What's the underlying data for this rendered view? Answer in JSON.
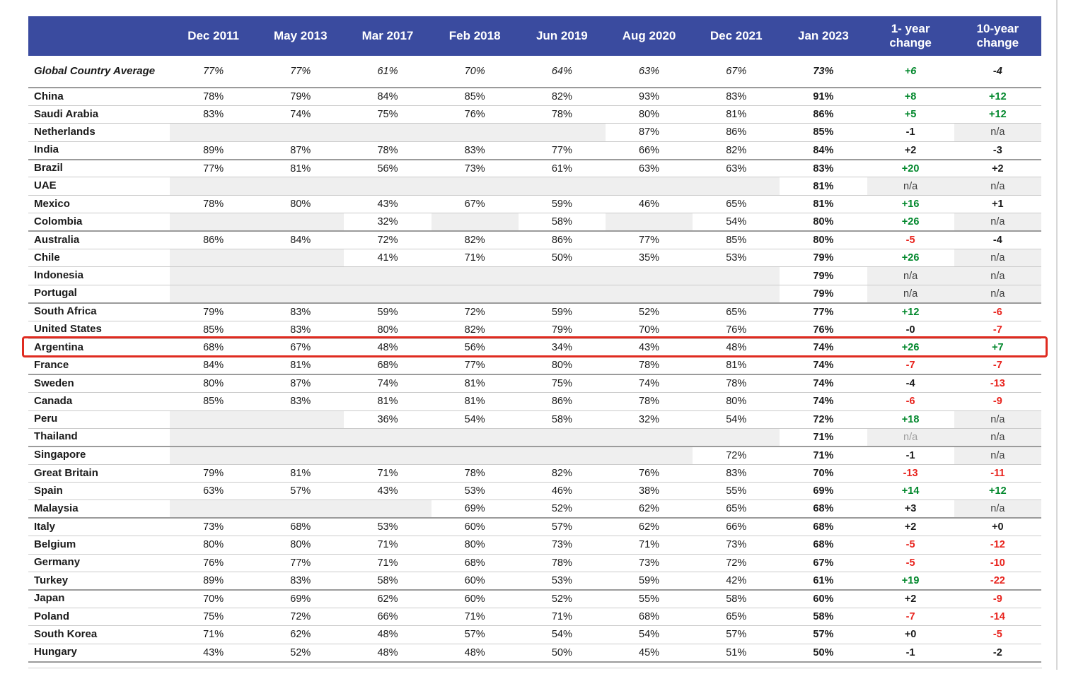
{
  "colors": {
    "header_bg": "#3A4B9F",
    "header_text": "#FFFFFF",
    "positive_green": "#00872B",
    "negative_red": "#E8231D",
    "neutral_black": "#1A1A1A",
    "missing_cell_bg": "#EFEFEF",
    "highlight_border": "#DF2B20"
  },
  "chart_data": {
    "type": "table",
    "columns": [
      "",
      "Dec 2011",
      "May 2013",
      "Mar 2017",
      "Feb 2018",
      "Jun 2019",
      "Aug 2020",
      "Dec 2021",
      "Jan 2023",
      "1- year change",
      "10-year change"
    ],
    "summary_row": {
      "n": "Global Country Average",
      "v": [
        "77%",
        "77%",
        "61%",
        "70%",
        "64%",
        "63%",
        "67%"
      ],
      "j": "73%",
      "c1": {
        "t": "+6",
        "c": "green"
      },
      "c10": {
        "t": "-4",
        "c": "black"
      }
    },
    "rows": [
      {
        "n": "China",
        "v": [
          "78%",
          "79%",
          "84%",
          "85%",
          "82%",
          "93%",
          "83%"
        ],
        "j": "91%",
        "c1": {
          "t": "+8",
          "c": "green"
        },
        "c10": {
          "t": "+12",
          "c": "green"
        }
      },
      {
        "n": "Saudi Arabia",
        "v": [
          "83%",
          "74%",
          "75%",
          "76%",
          "78%",
          "80%",
          "81%"
        ],
        "j": "86%",
        "c1": {
          "t": "+5",
          "c": "green"
        },
        "c10": {
          "t": "+12",
          "c": "green"
        }
      },
      {
        "n": "Netherlands",
        "v": [
          null,
          null,
          null,
          null,
          null,
          "87%",
          "86%"
        ],
        "j": "85%",
        "c1": {
          "t": "-1",
          "c": "black"
        },
        "c10": {
          "t": "n/a",
          "na": true
        }
      },
      {
        "n": "India",
        "v": [
          "89%",
          "87%",
          "78%",
          "83%",
          "77%",
          "66%",
          "82%"
        ],
        "j": "84%",
        "c1": {
          "t": "+2",
          "c": "black"
        },
        "c10": {
          "t": "-3",
          "c": "black"
        },
        "g": true
      },
      {
        "n": "Brazil",
        "v": [
          "77%",
          "81%",
          "56%",
          "73%",
          "61%",
          "63%",
          "63%"
        ],
        "j": "83%",
        "c1": {
          "t": "+20",
          "c": "green"
        },
        "c10": {
          "t": "+2",
          "c": "black"
        }
      },
      {
        "n": "UAE",
        "v": [
          null,
          null,
          null,
          null,
          null,
          null,
          null
        ],
        "j": "81%",
        "c1": {
          "t": "n/a",
          "na": true
        },
        "c10": {
          "t": "n/a",
          "na": true
        }
      },
      {
        "n": "Mexico",
        "v": [
          "78%",
          "80%",
          "43%",
          "67%",
          "59%",
          "46%",
          "65%"
        ],
        "j": "81%",
        "c1": {
          "t": "+16",
          "c": "green"
        },
        "c10": {
          "t": "+1",
          "c": "black"
        }
      },
      {
        "n": "Colombia",
        "v": [
          null,
          null,
          "32%",
          null,
          "58%",
          null,
          "54%"
        ],
        "j": "80%",
        "c1": {
          "t": "+26",
          "c": "green"
        },
        "c10": {
          "t": "n/a",
          "na": true
        },
        "g": true
      },
      {
        "n": "Australia",
        "v": [
          "86%",
          "84%",
          "72%",
          "82%",
          "86%",
          "77%",
          "85%"
        ],
        "j": "80%",
        "c1": {
          "t": "-5",
          "c": "red"
        },
        "c10": {
          "t": "-4",
          "c": "black"
        }
      },
      {
        "n": "Chile",
        "v": [
          null,
          null,
          "41%",
          "71%",
          "50%",
          "35%",
          "53%"
        ],
        "j": "79%",
        "c1": {
          "t": "+26",
          "c": "green"
        },
        "c10": {
          "t": "n/a",
          "na": true
        }
      },
      {
        "n": "Indonesia",
        "v": [
          null,
          null,
          null,
          null,
          null,
          null,
          null
        ],
        "j": "79%",
        "c1": {
          "t": "n/a",
          "na": true
        },
        "c10": {
          "t": "n/a",
          "na": true
        }
      },
      {
        "n": "Portugal",
        "v": [
          null,
          null,
          null,
          null,
          null,
          null,
          null
        ],
        "j": "79%",
        "c1": {
          "t": "n/a",
          "na": true
        },
        "c10": {
          "t": "n/a",
          "na": true
        },
        "g": true
      },
      {
        "n": "South Africa",
        "v": [
          "79%",
          "83%",
          "59%",
          "72%",
          "59%",
          "52%",
          "65%"
        ],
        "j": "77%",
        "c1": {
          "t": "+12",
          "c": "green"
        },
        "c10": {
          "t": "-6",
          "c": "red"
        }
      },
      {
        "n": "United States",
        "v": [
          "85%",
          "83%",
          "80%",
          "82%",
          "79%",
          "70%",
          "76%"
        ],
        "j": "76%",
        "c1": {
          "t": "-0",
          "c": "black"
        },
        "c10": {
          "t": "-7",
          "c": "red"
        }
      },
      {
        "n": "Argentina",
        "v": [
          "68%",
          "67%",
          "48%",
          "56%",
          "34%",
          "43%",
          "48%"
        ],
        "j": "74%",
        "c1": {
          "t": "+26",
          "c": "green"
        },
        "c10": {
          "t": "+7",
          "c": "green"
        },
        "hl": true
      },
      {
        "n": "France",
        "v": [
          "84%",
          "81%",
          "68%",
          "77%",
          "80%",
          "78%",
          "81%"
        ],
        "j": "74%",
        "c1": {
          "t": "-7",
          "c": "red"
        },
        "c10": {
          "t": "-7",
          "c": "red"
        },
        "g": true
      },
      {
        "n": "Sweden",
        "v": [
          "80%",
          "87%",
          "74%",
          "81%",
          "75%",
          "74%",
          "78%"
        ],
        "j": "74%",
        "c1": {
          "t": "-4",
          "c": "black"
        },
        "c10": {
          "t": "-13",
          "c": "red"
        }
      },
      {
        "n": "Canada",
        "v": [
          "85%",
          "83%",
          "81%",
          "81%",
          "86%",
          "78%",
          "80%"
        ],
        "j": "74%",
        "c1": {
          "t": "-6",
          "c": "red"
        },
        "c10": {
          "t": "-9",
          "c": "red"
        }
      },
      {
        "n": "Peru",
        "v": [
          null,
          null,
          "36%",
          "54%",
          "58%",
          "32%",
          "54%"
        ],
        "j": "72%",
        "c1": {
          "t": "+18",
          "c": "green"
        },
        "c10": {
          "t": "n/a",
          "na": true
        }
      },
      {
        "n": "Thailand",
        "v": [
          null,
          null,
          null,
          null,
          null,
          null,
          null
        ],
        "j": "71%",
        "c1": {
          "t": "n/a",
          "na": true,
          "c": "gray"
        },
        "c10": {
          "t": "n/a",
          "na": true
        },
        "g": true
      },
      {
        "n": "Singapore",
        "v": [
          null,
          null,
          null,
          null,
          null,
          null,
          "72%"
        ],
        "j": "71%",
        "c1": {
          "t": "-1",
          "c": "black"
        },
        "c10": {
          "t": "n/a",
          "na": true
        }
      },
      {
        "n": "Great Britain",
        "v": [
          "79%",
          "81%",
          "71%",
          "78%",
          "82%",
          "76%",
          "83%"
        ],
        "j": "70%",
        "c1": {
          "t": "-13",
          "c": "red"
        },
        "c10": {
          "t": "-11",
          "c": "red"
        }
      },
      {
        "n": "Spain",
        "v": [
          "63%",
          "57%",
          "43%",
          "53%",
          "46%",
          "38%",
          "55%"
        ],
        "j": "69%",
        "c1": {
          "t": "+14",
          "c": "green"
        },
        "c10": {
          "t": "+12",
          "c": "green"
        }
      },
      {
        "n": "Malaysia",
        "v": [
          null,
          null,
          null,
          "69%",
          "52%",
          "62%",
          "65%"
        ],
        "j": "68%",
        "c1": {
          "t": "+3",
          "c": "black"
        },
        "c10": {
          "t": "n/a",
          "na": true
        },
        "g": true
      },
      {
        "n": "Italy",
        "v": [
          "73%",
          "68%",
          "53%",
          "60%",
          "57%",
          "62%",
          "66%"
        ],
        "j": "68%",
        "c1": {
          "t": "+2",
          "c": "black"
        },
        "c10": {
          "t": "+0",
          "c": "black"
        }
      },
      {
        "n": "Belgium",
        "v": [
          "80%",
          "80%",
          "71%",
          "80%",
          "73%",
          "71%",
          "73%"
        ],
        "j": "68%",
        "c1": {
          "t": "-5",
          "c": "red"
        },
        "c10": {
          "t": "-12",
          "c": "red"
        }
      },
      {
        "n": "Germany",
        "v": [
          "76%",
          "77%",
          "71%",
          "68%",
          "78%",
          "73%",
          "72%"
        ],
        "j": "67%",
        "c1": {
          "t": "-5",
          "c": "red"
        },
        "c10": {
          "t": "-10",
          "c": "red"
        }
      },
      {
        "n": "Turkey",
        "v": [
          "89%",
          "83%",
          "58%",
          "60%",
          "53%",
          "59%",
          "42%"
        ],
        "j": "61%",
        "c1": {
          "t": "+19",
          "c": "green"
        },
        "c10": {
          "t": "-22",
          "c": "red"
        },
        "g": true
      },
      {
        "n": "Japan",
        "v": [
          "70%",
          "69%",
          "62%",
          "60%",
          "52%",
          "55%",
          "58%"
        ],
        "j": "60%",
        "c1": {
          "t": "+2",
          "c": "black"
        },
        "c10": {
          "t": "-9",
          "c": "red"
        }
      },
      {
        "n": "Poland",
        "v": [
          "75%",
          "72%",
          "66%",
          "71%",
          "71%",
          "68%",
          "65%"
        ],
        "j": "58%",
        "c1": {
          "t": "-7",
          "c": "red"
        },
        "c10": {
          "t": "-14",
          "c": "red"
        }
      },
      {
        "n": "South Korea",
        "v": [
          "71%",
          "62%",
          "48%",
          "57%",
          "54%",
          "54%",
          "57%"
        ],
        "j": "57%",
        "c1": {
          "t": "+0",
          "c": "black"
        },
        "c10": {
          "t": "-5",
          "c": "red"
        }
      },
      {
        "n": "Hungary",
        "v": [
          "43%",
          "52%",
          "48%",
          "48%",
          "50%",
          "45%",
          "51%"
        ],
        "j": "50%",
        "c1": {
          "t": "-1",
          "c": "black"
        },
        "c10": {
          "t": "-2",
          "c": "black"
        },
        "g": true
      }
    ]
  }
}
